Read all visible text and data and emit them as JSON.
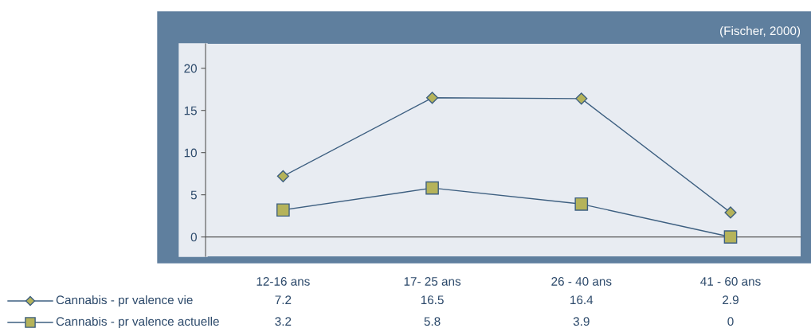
{
  "chart_data": {
    "type": "line",
    "categories": [
      "12-16 ans",
      "17- 25 ans",
      "26 - 40 ans",
      "41 - 60 ans"
    ],
    "series": [
      {
        "name": "Cannabis - pr valence vie",
        "color": "#3d5f80",
        "marker": "diamond",
        "values": [
          7.2,
          16.5,
          16.4,
          2.9
        ]
      },
      {
        "name": "Cannabis - pr valence actuelle",
        "color": "#3d5f80",
        "marker": "square",
        "values": [
          3.2,
          5.8,
          3.9,
          0
        ]
      }
    ],
    "ylim": [
      -2.3,
      22.9
    ],
    "yticks": [
      0,
      5,
      10,
      15,
      20
    ],
    "data_labels": true,
    "legend": "bottom",
    "annotations": [
      "(Fischer, 2000)"
    ]
  }
}
